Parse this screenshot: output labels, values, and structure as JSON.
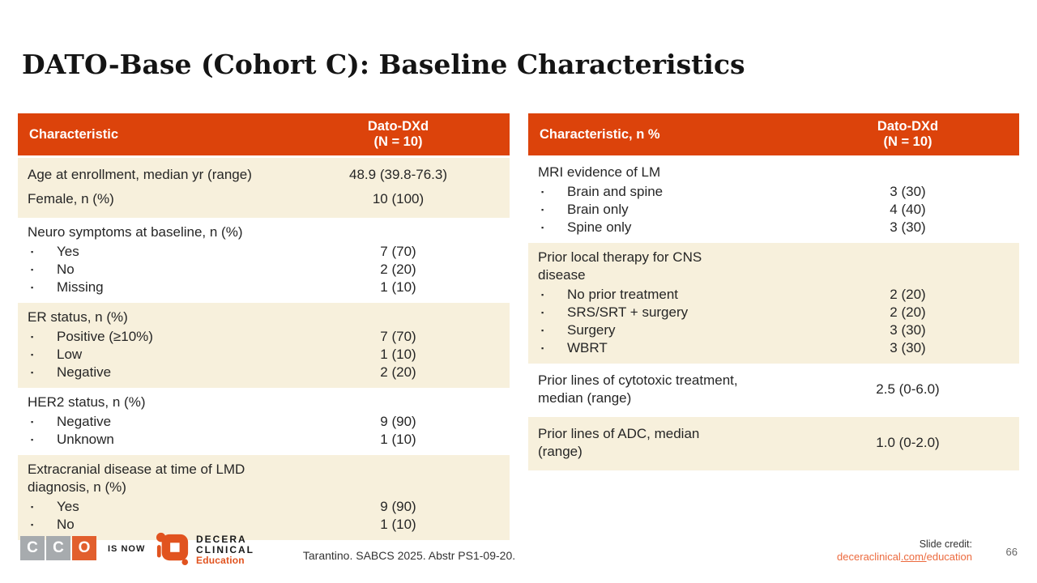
{
  "slide": {
    "title": "DATO-Base (Cohort C): Baseline Characteristics",
    "page_number": "66"
  },
  "colors": {
    "header_orange": "#DC430B",
    "row_cream": "#F7F0DC",
    "row_white": "#FFFFFF",
    "link_orange": "#EC6A3E",
    "cco_gray": "#A7ABAE",
    "cco_orange": "#E25F2D"
  },
  "tables": [
    {
      "header": {
        "characteristic": "Characteristic",
        "group_line1": "Dato-DXd",
        "group_line2": "(N = 10)"
      },
      "sections": [
        {
          "bg": "cream",
          "rows": [
            {
              "label": "Age at enrollment, median yr (range)",
              "value": "48.9 (39.8-76.3)"
            },
            {
              "label": "Female, n (%)",
              "value": "10 (100)"
            }
          ]
        },
        {
          "bg": "white",
          "title": "Neuro symptoms at baseline, n (%)",
          "items": [
            {
              "label": "Yes",
              "value": "7 (70)"
            },
            {
              "label": "No",
              "value": "2 (20)"
            },
            {
              "label": "Missing",
              "value": "1 (10)"
            }
          ]
        },
        {
          "bg": "cream",
          "title": "ER status, n (%)",
          "items": [
            {
              "label": "Positive (≥10%)",
              "value": "7 (70)"
            },
            {
              "label": "Low",
              "value": "1 (10)"
            },
            {
              "label": "Negative",
              "value": "2 (20)"
            }
          ]
        },
        {
          "bg": "white",
          "title": "HER2 status, n (%)",
          "items": [
            {
              "label": "Negative",
              "value": "9 (90)"
            },
            {
              "label": "Unknown",
              "value": "1 (10)"
            }
          ]
        },
        {
          "bg": "cream",
          "title": "Extracranial disease at time of LMD\ndiagnosis, n (%)",
          "items": [
            {
              "label": "Yes",
              "value": "9 (90)"
            },
            {
              "label": "No",
              "value": "1 (10)"
            }
          ]
        }
      ]
    },
    {
      "header": {
        "characteristic": "Characteristic, n %",
        "group_line1": "Dato-DXd",
        "group_line2": "(N = 10)"
      },
      "sections": [
        {
          "bg": "white",
          "title": "MRI evidence of LM",
          "items": [
            {
              "label": "Brain and spine",
              "value": "3 (30)"
            },
            {
              "label": "Brain only",
              "value": "4 (40)"
            },
            {
              "label": "Spine only",
              "value": "3 (30)"
            }
          ]
        },
        {
          "bg": "cream",
          "title": "Prior local therapy for CNS\ndisease",
          "items": [
            {
              "label": "No prior treatment",
              "value": "2 (20)"
            },
            {
              "label": "SRS/SRT + surgery",
              "value": "2 (20)"
            },
            {
              "label": "Surgery",
              "value": "3 (30)"
            },
            {
              "label": "WBRT",
              "value": "3 (30)"
            }
          ]
        },
        {
          "bg": "white",
          "rows": [
            {
              "label": "Prior lines of cytotoxic treatment,\nmedian (range)",
              "value": "2.5 (0-6.0)"
            }
          ]
        },
        {
          "bg": "cream",
          "rows": [
            {
              "label": "Prior lines of ADC, median\n(range)",
              "value": "1.0 (0-2.0)"
            }
          ]
        }
      ]
    }
  ],
  "footer": {
    "cco_letters": [
      "C",
      "C",
      "O"
    ],
    "is_now": "IS NOW",
    "decera_line1": "DECERA",
    "decera_line2": "CLINICAL",
    "decera_sub": "Education",
    "citation": "Tarantino. SABCS 2025. Abstr PS1-09-20.",
    "credit_label": "Slide credit:",
    "credit_link_prefix": "deceraclinical",
    "credit_link_underlined": ".com/",
    "credit_link_suffix": "education"
  }
}
